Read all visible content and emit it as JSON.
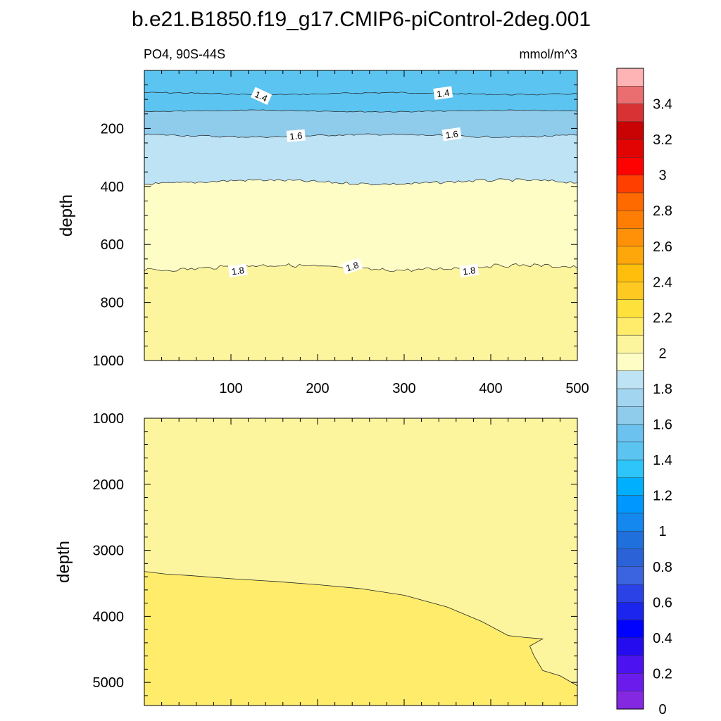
{
  "title": "b.e21.B1850.f19_g17.CMIP6-piControl-2deg.001",
  "left_subtitle": "PO4, 90S-44S",
  "right_subtitle": "mmol/m^3",
  "colors": {
    "band_14_15": "#5bc4f1",
    "band_15_16": "#8fcbeb",
    "band_16_17": "#bde3f4",
    "band_17_18": "#fefdc6",
    "band_18_19": "#fdf59d",
    "band_19_20": "#feec6a"
  },
  "chart_data": [
    {
      "type": "contour",
      "panel": "upper",
      "xlim": [
        0,
        500
      ],
      "ylim": [
        0,
        1000
      ],
      "y_reversed": true,
      "ylabel": "depth",
      "xticks": [
        100,
        200,
        300,
        400,
        500
      ],
      "xtick_labels": [
        "100",
        "200",
        "300",
        "400",
        "500"
      ],
      "yticks": [
        200,
        400,
        600,
        800,
        1000
      ],
      "ytick_labels": [
        "200",
        "400",
        "600",
        "800",
        "1000"
      ],
      "contours": [
        {
          "level": 1.4,
          "depth": 80
        },
        {
          "level": 1.5,
          "depth": 140
        },
        {
          "level": 1.6,
          "depth": 225
        },
        {
          "level": 1.7,
          "depth": 385
        },
        {
          "level": 1.8,
          "depth": 680
        }
      ],
      "contour_labels": [
        {
          "text": "1.4",
          "x": 135,
          "depth": 88
        },
        {
          "text": "1.4",
          "x": 345,
          "depth": 78
        },
        {
          "text": "1.6",
          "x": 175,
          "depth": 225
        },
        {
          "text": "1.6",
          "x": 355,
          "depth": 220
        },
        {
          "text": "1.8",
          "x": 108,
          "depth": 690
        },
        {
          "text": "1.8",
          "x": 240,
          "depth": 675
        },
        {
          "text": "1.8",
          "x": 375,
          "depth": 690
        }
      ]
    },
    {
      "type": "contour",
      "panel": "lower",
      "xlim": [
        0,
        500
      ],
      "ylim": [
        1000,
        5350
      ],
      "y_reversed": true,
      "ylabel": "depth",
      "yticks": [
        1000,
        2000,
        3000,
        4000,
        5000
      ],
      "ytick_labels": [
        "1000",
        "2000",
        "3000",
        "4000",
        "5000"
      ],
      "contours": [
        {
          "level": 1.9,
          "boundary": [
            [
              0,
              3320
            ],
            [
              25,
              3360
            ],
            [
              50,
              3380
            ],
            [
              100,
              3430
            ],
            [
              150,
              3470
            ],
            [
              200,
              3520
            ],
            [
              250,
              3580
            ],
            [
              300,
              3680
            ],
            [
              350,
              3860
            ],
            [
              390,
              4080
            ],
            [
              420,
              4290
            ],
            [
              440,
              4320
            ],
            [
              460,
              4340
            ],
            [
              445,
              4450
            ],
            [
              450,
              4600
            ],
            [
              460,
              4820
            ],
            [
              480,
              4900
            ],
            [
              500,
              5050
            ]
          ]
        }
      ]
    }
  ],
  "colorbar": {
    "labels": [
      "3.4",
      "3.2",
      "3",
      "2.8",
      "2.6",
      "2.4",
      "2.2",
      "2",
      "1.8",
      "1.6",
      "1.4",
      "1.2",
      "1",
      "0.8",
      "0.6",
      "0.4",
      "0.2",
      "0"
    ],
    "colors": [
      "#feb3b4",
      "#ea6e70",
      "#d93234",
      "#c90204",
      "#e20403",
      "#fe0201",
      "#fe3f00",
      "#fe6a00",
      "#fe7e04",
      "#fe9107",
      "#fea70a",
      "#febe0b",
      "#feca21",
      "#fee13b",
      "#feec6a",
      "#fdf59d",
      "#fefdc6",
      "#bde3f4",
      "#a2d5ef",
      "#8fcbeb",
      "#6cc2ef",
      "#5bc4f1",
      "#2ec6fa",
      "#00b0fe",
      "#0098fe",
      "#1488ee",
      "#1f6fdc",
      "#2b62d7",
      "#3b64e0",
      "#2b42e7",
      "#1b25ed",
      "#0002fe",
      "#250cef",
      "#4c13f0",
      "#6b1ced",
      "#8528e2"
    ]
  }
}
